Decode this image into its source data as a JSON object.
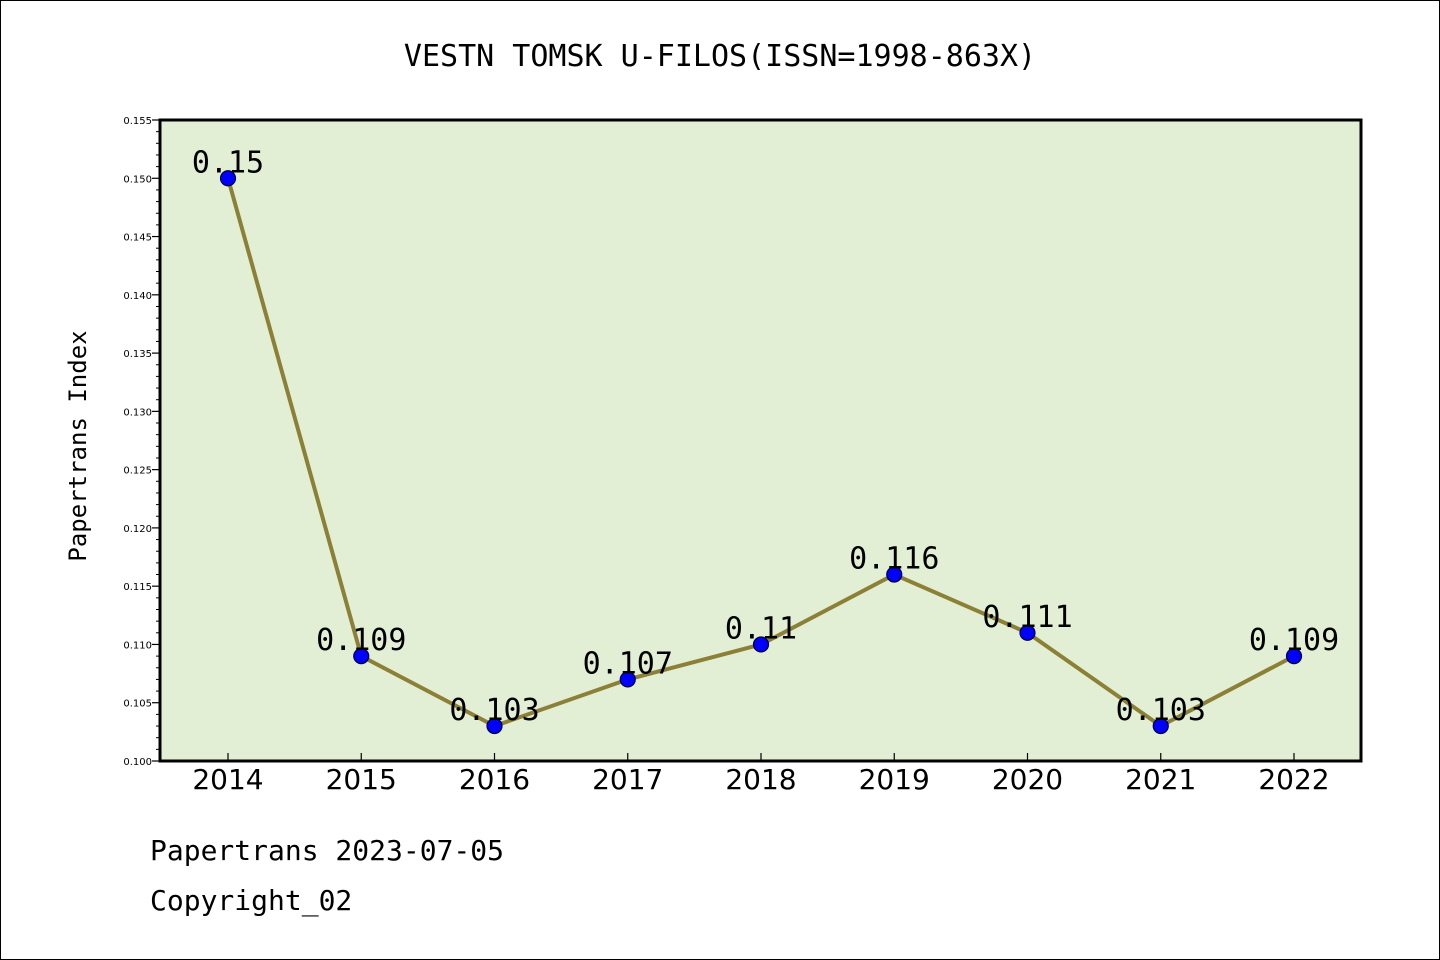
{
  "chart_data": {
    "type": "line",
    "title": "VESTN TOMSK U-FILOS(ISSN=1998-863X)",
    "xlabel": "",
    "ylabel": "Papertrans Index",
    "categories": [
      "2014",
      "2015",
      "2016",
      "2017",
      "2018",
      "2019",
      "2020",
      "2021",
      "2022"
    ],
    "series": [
      {
        "values": [
          0.15,
          0.109,
          0.103,
          0.107,
          0.11,
          0.116,
          0.111,
          0.103,
          0.109
        ],
        "labels": [
          "0.15",
          "0.109",
          "0.103",
          "0.107",
          "0.11",
          "0.116",
          "0.111",
          "0.103",
          "0.109"
        ]
      }
    ],
    "ylim": [
      0.1,
      0.155
    ],
    "yticks": [
      "0.100",
      "0.105",
      "0.110",
      "0.115",
      "0.120",
      "0.125",
      "0.130",
      "0.135",
      "0.140",
      "0.145",
      "0.150",
      "0.155"
    ],
    "grid": false,
    "legend": "none",
    "colors": {
      "plot_background": "#e2efd5",
      "line": "#8b8035",
      "marker": "#0000ff",
      "marker_edge": "#000033"
    }
  },
  "footer": {
    "line1": "Papertrans 2023-07-05",
    "line2": "Copyright_02"
  }
}
